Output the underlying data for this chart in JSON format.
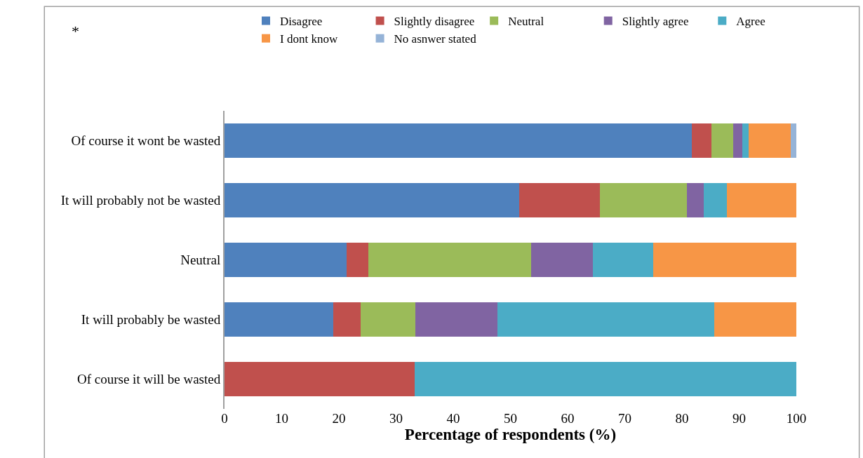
{
  "chart_data": {
    "type": "bar",
    "orientation": "horizontal",
    "stacked": true,
    "xlabel": "Percentage of respondents (%)",
    "annotations": [
      "*"
    ],
    "categories": [
      "Of course it wont be wasted",
      "It will probably not be wasted",
      "Neutral",
      "It will probably be wasted",
      "Of course it will be wasted"
    ],
    "series": [
      {
        "name": "Disagree",
        "color": "#4f81bd",
        "values": [
          81.7,
          51.5,
          21.4,
          19.0,
          null
        ]
      },
      {
        "name": "Slightly disagree",
        "color": "#c0504d",
        "values": [
          3.4,
          14.2,
          3.7,
          4.8,
          33.3
        ]
      },
      {
        "name": "Neutral",
        "color": "#9bbb59",
        "values": [
          3.8,
          15.2,
          28.5,
          9.6,
          null
        ]
      },
      {
        "name": "Slightly agree",
        "color": "#8064a2",
        "values": [
          1.6,
          2.9,
          10.8,
          14.3,
          null
        ]
      },
      {
        "name": "Agree",
        "color": "#4bacc6",
        "values": [
          1.1,
          4.1,
          10.6,
          38.0,
          66.7
        ]
      },
      {
        "name": "I dont know",
        "color": "#f79646",
        "values": [
          7.4,
          12.1,
          25.0,
          14.3,
          null
        ]
      },
      {
        "name": "No asnwer stated",
        "color": "#95b3d7",
        "values": [
          1.0,
          null,
          null,
          null,
          null
        ]
      }
    ],
    "xlim": [
      0,
      100
    ],
    "xticks": [
      0,
      10,
      20,
      30,
      40,
      50,
      60,
      70,
      80,
      90,
      100
    ],
    "legend": "top"
  }
}
